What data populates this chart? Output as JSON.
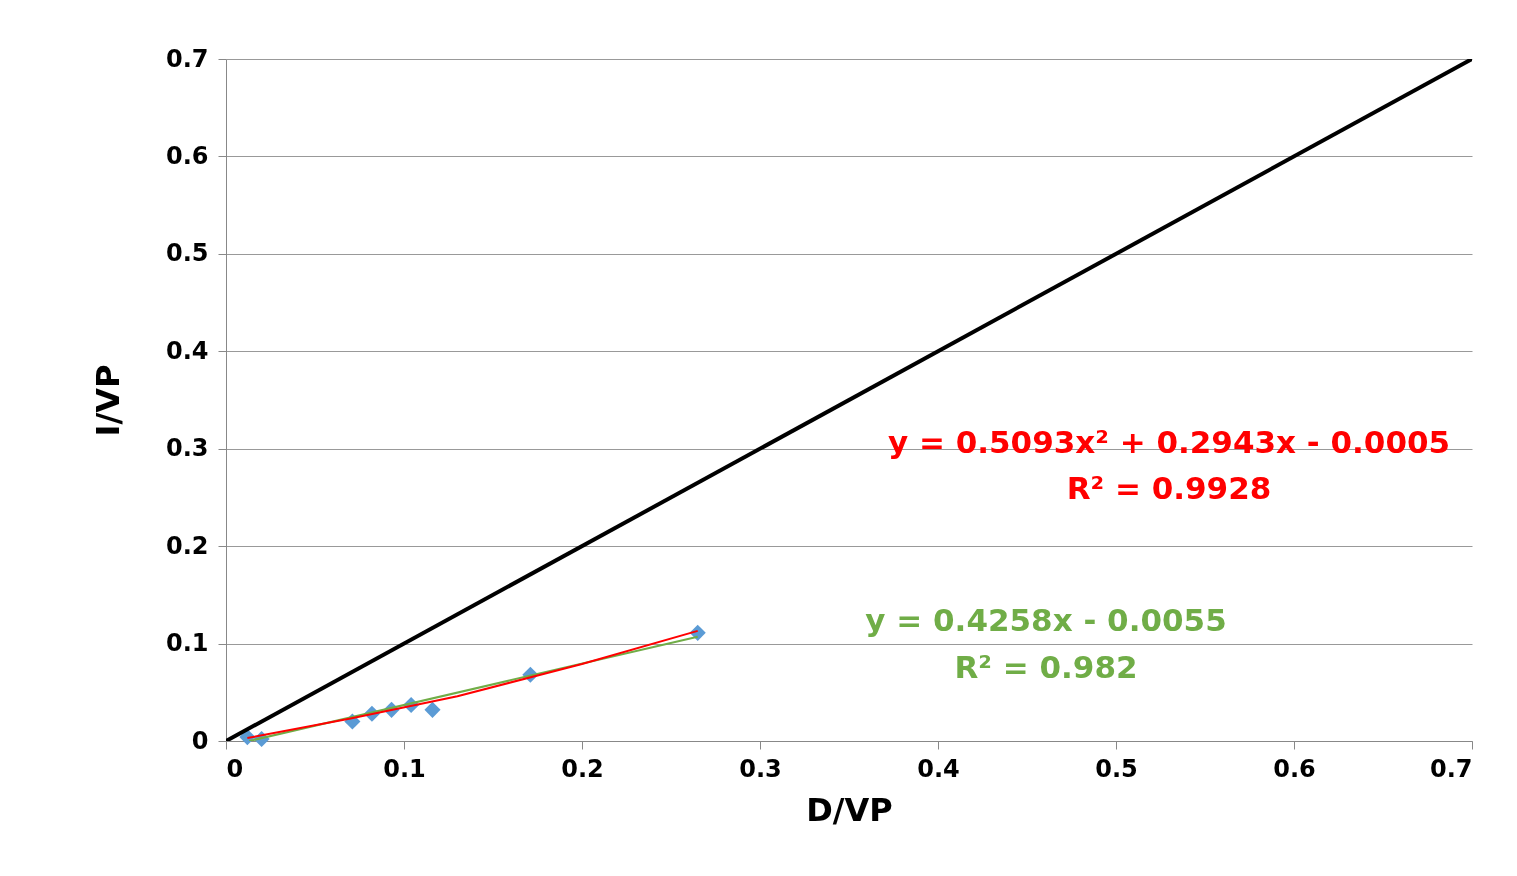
{
  "chart_data": {
    "type": "scatter",
    "xlabel": "D/VP",
    "ylabel": "I/VP",
    "xlim": [
      0,
      0.7
    ],
    "ylim": [
      0,
      0.7
    ],
    "xticks": [
      0,
      0.1,
      0.2,
      0.3,
      0.4,
      0.5,
      0.6,
      0.7
    ],
    "yticks": [
      0,
      0.1,
      0.2,
      0.3,
      0.4,
      0.5,
      0.6,
      0.7
    ],
    "grid": "y",
    "series": [
      {
        "type": "line",
        "marker": "none",
        "color": "#000000",
        "x": [
          0,
          0.7
        ],
        "values": [
          0,
          0.7
        ]
      },
      {
        "type": "scatter",
        "marker": "diamond",
        "color": "#5b9bd5",
        "x": [
          0.012,
          0.02,
          0.071,
          0.082,
          0.093,
          0.104,
          0.116,
          0.171,
          0.265
        ],
        "values": [
          0.004,
          0.002,
          0.02,
          0.028,
          0.032,
          0.037,
          0.032,
          0.068,
          0.111
        ]
      },
      {
        "type": "line",
        "marker": "none",
        "color": "#70ad47",
        "x": [
          0.013,
          0.265
        ],
        "values": [
          0.0,
          0.107
        ]
      },
      {
        "type": "line",
        "marker": "none",
        "color": "#ff0000",
        "x": [
          0.012,
          0.07,
          0.13,
          0.2,
          0.265
        ],
        "values": [
          0.003,
          0.023,
          0.046,
          0.079,
          0.113
        ]
      }
    ],
    "annotations": [
      "y = 0.5093x² + 0.2943x - 0.0005",
      "R² = 0.9928",
      "y = 0.4258x - 0.0055",
      "R² = 0.982"
    ]
  }
}
